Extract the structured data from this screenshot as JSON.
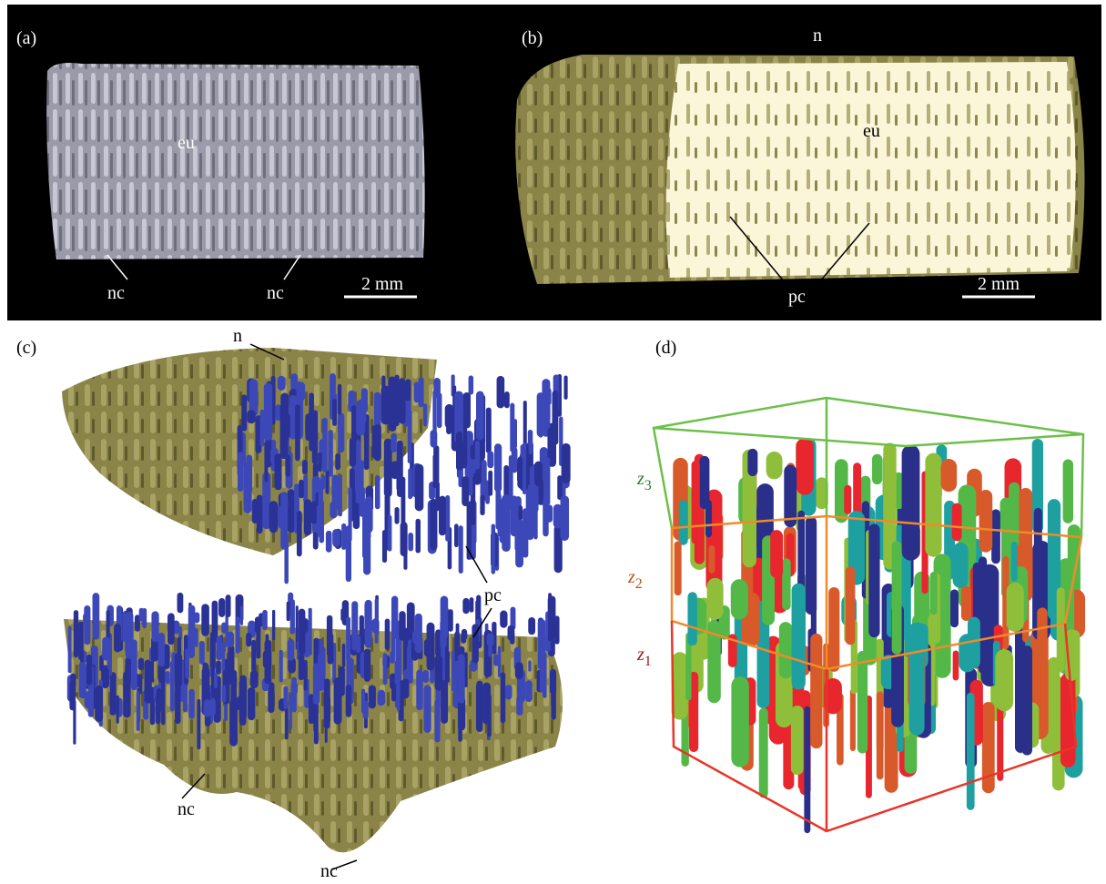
{
  "panels": [
    {
      "label": "(a)",
      "annotations": [
        "eu",
        "nc",
        "nc"
      ],
      "scale_bar": "2 mm"
    },
    {
      "label": "(b)",
      "annotations": [
        "n",
        "eu",
        "pc"
      ],
      "scale_bar": "2 mm"
    },
    {
      "label": "(c)",
      "annotations": [
        "n",
        "pc",
        "nc",
        "nc"
      ]
    },
    {
      "label": "(d)",
      "layers": [
        {
          "symbol": "z",
          "subscript": "3"
        },
        {
          "symbol": "z",
          "subscript": "2"
        },
        {
          "symbol": "z",
          "subscript": "1"
        }
      ]
    }
  ]
}
